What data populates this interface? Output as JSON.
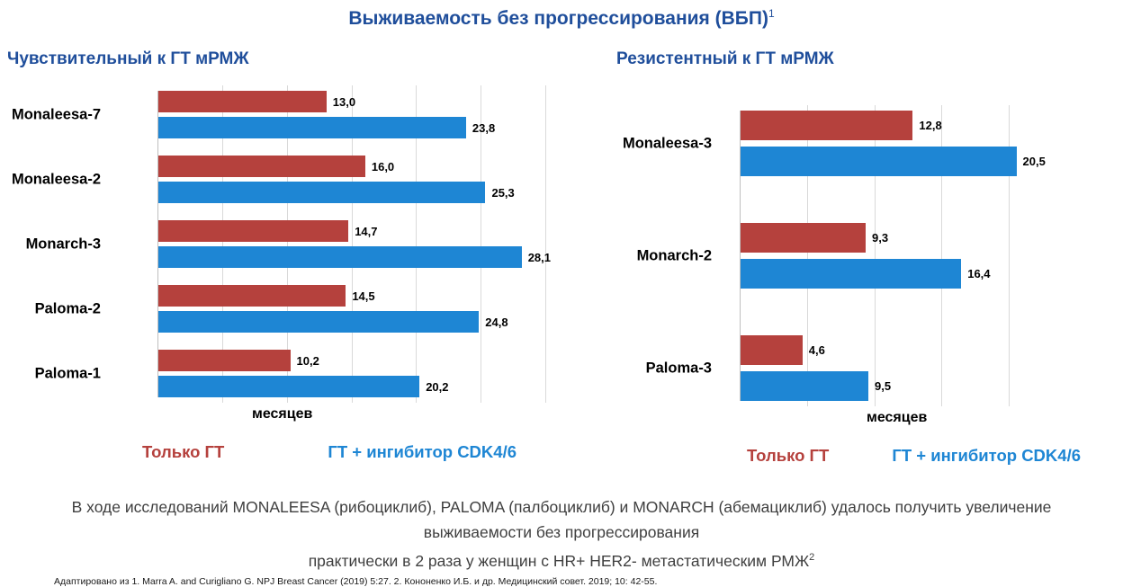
{
  "title": {
    "text": "Выживаемость без прогрессирования (ВБП)",
    "superscript": "1"
  },
  "colors": {
    "heading_blue": "#1F4E9B",
    "red_series": "#B5413D",
    "blue_series": "#1E86D4",
    "gridline": "#D9D9D9",
    "summary_text": "#3F3F3F"
  },
  "chart_data": [
    {
      "type": "bar",
      "orientation": "horizontal",
      "title": "Чувствительный к ГТ мРМЖ",
      "xlabel": "месяцев",
      "xlim": [
        0,
        30
      ],
      "grid_step": 5,
      "grid": true,
      "legend_position": "bottom",
      "categories": [
        "Monaleesa-7",
        "Monaleesa-2",
        "Monarch-3",
        "Paloma-2",
        "Paloma-1"
      ],
      "series": [
        {
          "name": "Только ГТ",
          "color": "#B5413D",
          "values": [
            13.0,
            16.0,
            14.7,
            14.5,
            10.2
          ],
          "labels": [
            "13,0",
            "16,0",
            "14,7",
            "14,5",
            "10,2"
          ]
        },
        {
          "name": "ГТ + ингибитор CDK4/6",
          "color": "#1E86D4",
          "values": [
            23.8,
            25.3,
            28.1,
            24.8,
            20.2
          ],
          "labels": [
            "23,8",
            "25,3",
            "28,1",
            "24,8",
            "20,2"
          ]
        }
      ]
    },
    {
      "type": "bar",
      "orientation": "horizontal",
      "title": "Резистентный к ГТ мРМЖ",
      "xlabel": "месяцев",
      "xlim": [
        0,
        21
      ],
      "grid_step": 5,
      "grid": true,
      "legend_position": "bottom",
      "categories": [
        "Monaleesa-3",
        "Monarch-2",
        "Paloma-3"
      ],
      "series": [
        {
          "name": "Только ГТ",
          "color": "#B5413D",
          "values": [
            12.8,
            9.3,
            4.6
          ],
          "labels": [
            "12,8",
            "9,3",
            "4,6"
          ]
        },
        {
          "name": "ГТ + ингибитор CDK4/6",
          "color": "#1E86D4",
          "values": [
            20.5,
            16.4,
            9.5
          ],
          "labels": [
            "20,5",
            "16,4",
            "9,5"
          ]
        }
      ]
    }
  ],
  "summary": {
    "line1": "В ходе исследований MONALEESA (рибоциклиб), PALOMA (палбоциклиб) и MONARCH (абемациклиб) удалось получить увеличение",
    "line2": "выживаемости без прогрессирования",
    "line3": "практически в 2 раза у женщин с HR+ HER2- метастатическим РМЖ",
    "superscript": "2"
  },
  "footnote": "Адаптировано из 1. Marra A. and Curigliano G. NPJ Breast Cancer (2019) 5:27. 2. Кононенко И.Б. и др. Медицинский совет. 2019; 10: 42-55."
}
